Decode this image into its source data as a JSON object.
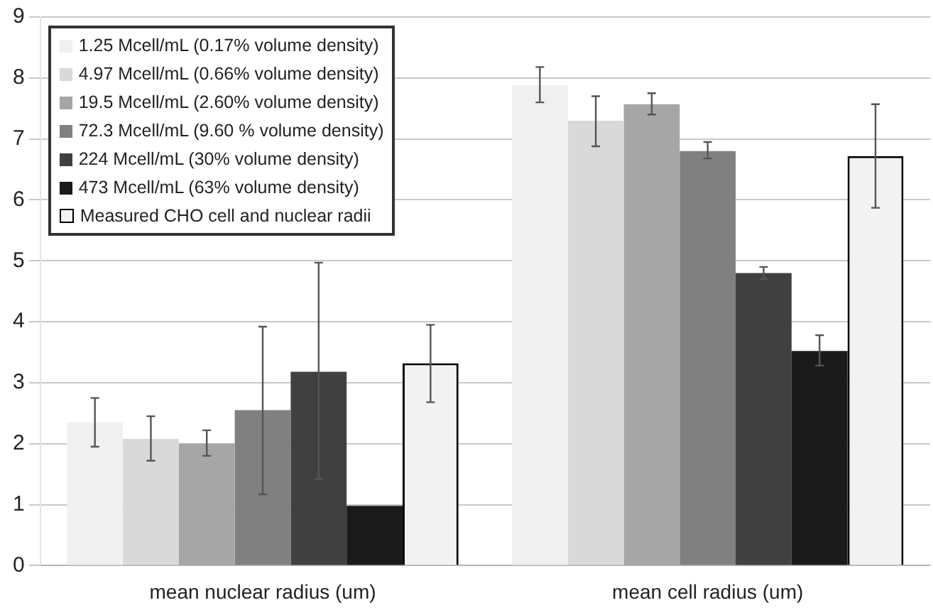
{
  "chart_data": {
    "type": "bar",
    "categories": [
      "mean nuclear radius (um)",
      "mean cell radius (um)"
    ],
    "series": [
      {
        "name": "1.25 Mcell/mL (0.17% volume density)",
        "color": "#f0f0f0",
        "values": [
          2.35,
          7.88
        ],
        "errors": [
          [
            1.95,
            2.75
          ],
          [
            7.6,
            8.18
          ]
        ]
      },
      {
        "name": "4.97 Mcell/mL (0.66% volume density)",
        "color": "#d9d9d9",
        "values": [
          2.08,
          7.3
        ],
        "errors": [
          [
            1.72,
            2.45
          ],
          [
            6.88,
            7.7
          ]
        ]
      },
      {
        "name": "19.5 Mcell/mL (2.60% volume density)",
        "color": "#a6a6a6",
        "values": [
          2.0,
          7.57
        ],
        "errors": [
          [
            1.8,
            2.22
          ],
          [
            7.4,
            7.75
          ]
        ]
      },
      {
        "name": "72.3 Mcell/mL (9.60 % volume density)",
        "color": "#808080",
        "values": [
          2.55,
          6.8
        ],
        "errors": [
          [
            1.17,
            3.92
          ],
          [
            6.68,
            6.95
          ]
        ]
      },
      {
        "name": "224 Mcell/mL (30% volume density)",
        "color": "#404040",
        "values": [
          3.18,
          4.8
        ],
        "errors": [
          [
            1.42,
            4.97
          ],
          [
            4.7,
            4.9
          ]
        ]
      },
      {
        "name": "473 Mcell/mL (63% volume density)",
        "color": "#1a1a1a",
        "values": [
          0.98,
          3.52
        ],
        "errors": [
          null,
          [
            3.28,
            3.78
          ]
        ]
      },
      {
        "name": "Measured CHO cell and nuclear radii",
        "color": "#f2f2f2",
        "values": [
          3.32,
          6.72
        ],
        "errors": [
          [
            2.68,
            3.95
          ],
          [
            5.87,
            7.57
          ]
        ]
      }
    ],
    "ylim": [
      0,
      9
    ],
    "yticks": [
      0,
      1,
      2,
      3,
      4,
      5,
      6,
      7,
      8,
      9
    ],
    "grid": "y",
    "legend": "top left"
  }
}
